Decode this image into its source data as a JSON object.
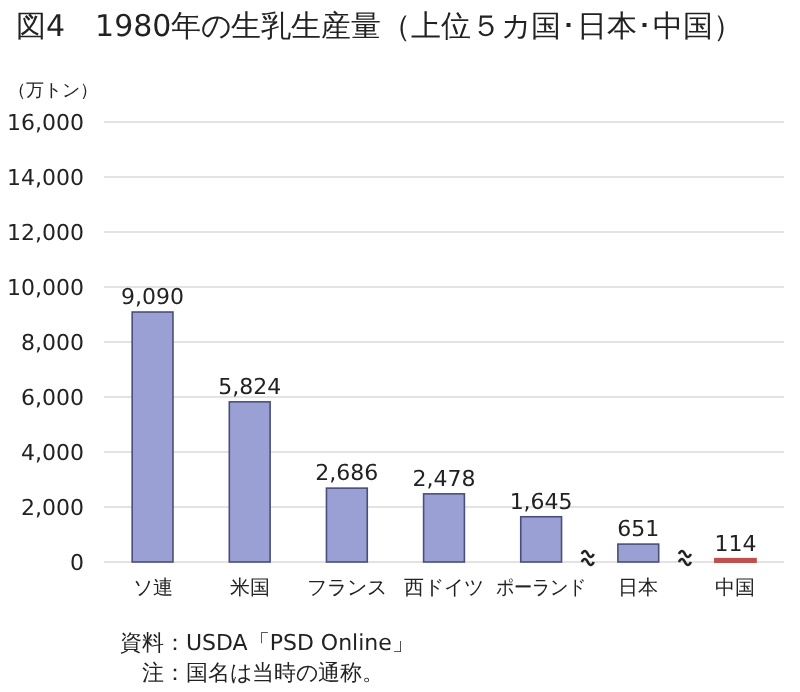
{
  "chart_data": {
    "type": "bar",
    "title": "図4　1980年の生乳生産量（上位５カ国･日本･中国）",
    "ylabel": "（万トン）",
    "categories": [
      "ソ連",
      "米国",
      "フランス",
      "西ドイツ",
      "ポーランド",
      "日本",
      "中国"
    ],
    "values": [
      9090,
      5824,
      2686,
      2478,
      1645,
      651,
      114
    ],
    "colors": [
      "#9aa0d4",
      "#9aa0d4",
      "#9aa0d4",
      "#9aa0d4",
      "#9aa0d4",
      "#9aa0d4",
      "#c0504d"
    ],
    "ylim": [
      0,
      16000
    ],
    "yticks": [
      {
        "value": 0,
        "label": "0"
      },
      {
        "value": 2000,
        "label": "2,000"
      },
      {
        "value": 4000,
        "label": "4,000"
      },
      {
        "value": 6000,
        "label": "6,000"
      },
      {
        "value": 8000,
        "label": "8,000"
      },
      {
        "value": 10000,
        "label": "10,000"
      },
      {
        "value": 12000,
        "label": "12,000"
      },
      {
        "value": 14000,
        "label": "14,000"
      },
      {
        "value": 16000,
        "label": "16,000"
      }
    ],
    "value_labels": [
      "9,090",
      "5,824",
      "2,686",
      "2,478",
      "1,645",
      "651",
      "114"
    ],
    "grid": "y",
    "annotations": [
      "資料：USDA「PSD Online」",
      "　注：国名は当時の通称。"
    ]
  }
}
